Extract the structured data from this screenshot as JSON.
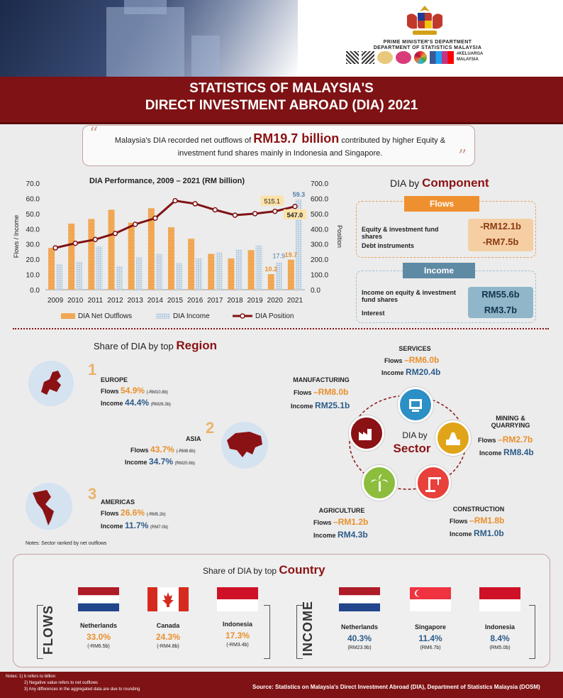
{
  "header": {
    "dept_line1": "PRIME MINISTER'S DEPARTMENT",
    "dept_line2": "DEPARTMENT OF STATISTICS MALAYSIA",
    "title_line1": "STATISTICS OF MALAYSIA'S",
    "title_line2": "DIRECT INVESTMENT ABROAD (DIA) 2021",
    "tag_logo": "#KELUARGA MALAYSIA"
  },
  "summary": {
    "pre": "Malaysia's DIA recorded net outflows of ",
    "highlight": "RM19.7 billion",
    "post": " contributed by higher Equity & investment fund shares mainly in Indonesia and Singapore."
  },
  "chart_data": {
    "type": "bar",
    "title": "DIA Performance,  2009 – 2021 (RM billion)",
    "categories": [
      "2009",
      "2010",
      "2011",
      "2012",
      "2013",
      "2014",
      "2015",
      "2016",
      "2017",
      "2018",
      "2019",
      "2020",
      "2021"
    ],
    "series": [
      {
        "name": "DIA Net Outflows",
        "type": "bar",
        "axis": "left",
        "values": [
          27.5,
          43.5,
          46.5,
          52.5,
          44,
          53.5,
          41,
          33.5,
          23.5,
          20.5,
          26,
          10.2,
          19.7
        ]
      },
      {
        "name": "DIA Income",
        "type": "bar",
        "axis": "left",
        "values": [
          17,
          18.5,
          28.5,
          15.5,
          21.5,
          23.5,
          17.5,
          20.5,
          24.5,
          26.5,
          29,
          17.9,
          59.3
        ]
      },
      {
        "name": "DIA Position",
        "type": "line",
        "axis": "right",
        "values": [
          275,
          305,
          330,
          370,
          430,
          470,
          585,
          565,
          525,
          490,
          500,
          515.1,
          547.0
        ]
      }
    ],
    "data_labels": {
      "outflows_2020": "10.2",
      "outflows_2021": "19.7",
      "income_2020": "17.9",
      "income_2021": "59.3",
      "position_2020": "515.1",
      "position_2021": "547.0"
    },
    "ylabel": "Flows / Income",
    "ylabel_right": "Position",
    "ylim": [
      0,
      70
    ],
    "ylim_right": [
      0,
      700
    ],
    "yticks": [
      "0.0",
      "10.0",
      "20.0",
      "30.0",
      "40.0",
      "50.0",
      "60.0",
      "70.0"
    ],
    "yticks_right": [
      "0.0",
      "100.0",
      "200.0",
      "300.0",
      "400.0",
      "500.0",
      "600.0",
      "700.0"
    ],
    "colors": {
      "outflows": "#ef9a3c",
      "income": "#9fb9cc",
      "position": "#7f1214"
    },
    "legend": "bottom"
  },
  "component": {
    "title_pre": "DIA by ",
    "title_bold": "Component",
    "flows_label": "Flows",
    "flows_item1": "Equity & investment fund shares",
    "flows_item2": "Debt instruments",
    "flows_val1": "-RM12.1b",
    "flows_val2": "-RM7.5b",
    "income_label": "Income",
    "income_item1": "Income on equity & investment fund shares",
    "income_item2": "Interest",
    "income_val1": "RM55.6b",
    "income_val2": "RM3.7b"
  },
  "region": {
    "title_pre": "Share of DIA by top ",
    "title_bold": "Region",
    "items": [
      {
        "rank": "1",
        "name": "EUROPE",
        "flows_label": "Flows",
        "flows_pct": "54.9%",
        "flows_amt": "(-RM10.8b)",
        "income_label": "Income",
        "income_pct": "44.4%",
        "income_amt": "(RM26.3b)"
      },
      {
        "rank": "2",
        "name": "ASIA",
        "flows_label": "Flows",
        "flows_pct": "43.7%",
        "flows_amt": "(-RM8.6b)",
        "income_label": "Income",
        "income_pct": "34.7%",
        "income_amt": "(RM20.6b)"
      },
      {
        "rank": "3",
        "name": "AMERICAS",
        "flows_label": "Flows",
        "flows_pct": "26.6%",
        "flows_amt": "(-RM5.2b)",
        "income_label": "Income",
        "income_pct": "11.7%",
        "income_amt": "(RM7.0b)"
      }
    ],
    "note": "Notes: Sector ranked by net outflows"
  },
  "sector": {
    "center_line1": "DIA by",
    "center_line2": "Sector",
    "items": [
      {
        "name": "SERVICES",
        "flows_label": "Flows",
        "flows": "–RM6.0b",
        "income_label": "Income",
        "income": "RM20.4b",
        "color": "#2c8fc6"
      },
      {
        "name": "MANUFACTURING",
        "flows_label": "Flows",
        "flows": "–RM8.0b",
        "income_label": "Income",
        "income": "RM25.1b",
        "color": "#8b1214"
      },
      {
        "name": "MINING & QUARRYING",
        "flows_label": "Flows",
        "flows": "–RM2.7b",
        "income_label": "Income",
        "income": "RM8.4b",
        "color": "#e0a418"
      },
      {
        "name": "AGRICULTURE",
        "flows_label": "Flows",
        "flows": "–RM1.2b",
        "income_label": "Income",
        "income": "RM4.3b",
        "color": "#8cbd3c"
      },
      {
        "name": "CONSTRUCTION",
        "flows_label": "Flows",
        "flows": "–RM1.8b",
        "income_label": "Income",
        "income": "RM1.0b",
        "color": "#e8403a"
      }
    ]
  },
  "country": {
    "title_pre": "Share of DIA by top ",
    "title_bold": "Country",
    "flows_label": "FLOWS",
    "income_label": "INCOME",
    "flows": [
      {
        "name": "Netherlands",
        "pct": "33.0%",
        "amt": "(-RM6.5b)",
        "flag": "netherlands"
      },
      {
        "name": "Canada",
        "pct": "24.3%",
        "amt": "(-RM4.8b)",
        "flag": "canada"
      },
      {
        "name": "Indonesia",
        "pct": "17.3%",
        "amt": "(-RM3.4b)",
        "flag": "indonesia"
      }
    ],
    "income": [
      {
        "name": "Netherlands",
        "pct": "40.3%",
        "amt": "(RM23.9b)",
        "flag": "netherlands"
      },
      {
        "name": "Singapore",
        "pct": "11.4%",
        "amt": "(RM6.7b)",
        "flag": "singapore"
      },
      {
        "name": "Indonesia",
        "pct": "8.4%",
        "amt": "(RM5.0b)",
        "flag": "indonesia"
      }
    ]
  },
  "footer": {
    "note1": "Notes: 1) b refers to billion",
    "note2": "2) Negative value refers to net outflows",
    "note3": "3) Any differences in the aggregated data are due to rounding",
    "source": "Source: Statistics on Malaysia's Direct Investment Abroad (DIA), Department of Statistics Malaysia (DOSM)"
  }
}
